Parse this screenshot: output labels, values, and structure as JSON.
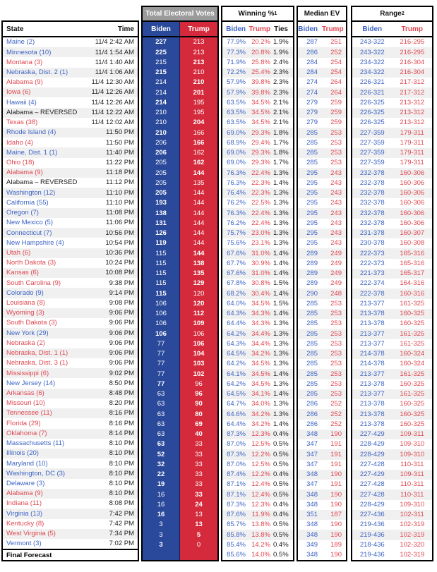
{
  "labels": {
    "total_electoral_votes": "Total Electoral Votes",
    "winning_pct": "Winning %",
    "winning_pct_sup": "1",
    "median_ev": "Median EV",
    "range": "Range",
    "range_sup": "2",
    "state": "State",
    "time": "Time",
    "biden": "Biden",
    "trump": "Trump",
    "ties": "Ties"
  },
  "colors": {
    "biden_column": "#2a499b",
    "trump_column": "#d42a3c",
    "biden_text": "#3d64c4",
    "trump_text": "#e04750",
    "header_gray": "#9b9b9b",
    "stripe": "#f0f0f0",
    "border": "#000000"
  },
  "chart_data": {
    "type": "table",
    "columns": [
      "State",
      "Time",
      "Total Electoral Votes Biden",
      "Total Electoral Votes Trump",
      "Winning % Biden",
      "Winning % Trump",
      "Winning % Ties",
      "Median EV Biden",
      "Median EV Trump",
      "Range Biden",
      "Range Trump"
    ],
    "rows": [
      {
        "state": "Maine (2)",
        "party": "biden",
        "time": "11/4 2:42 AM",
        "ev_biden": "227",
        "ev_trump": "213",
        "win_biden": "77.9%",
        "win_trump": "20.2%",
        "ties": "1.9%",
        "med_biden": "287",
        "med_trump": "251",
        "rng_biden": "243-322",
        "rng_trump": "216-295"
      },
      {
        "state": "Minnesota (10)",
        "party": "biden",
        "time": "11/4 1:54 AM",
        "ev_biden": "225",
        "ev_trump": "213",
        "win_biden": "77.3%",
        "win_trump": "20.8%",
        "ties": "1.9%",
        "med_biden": "286",
        "med_trump": "252",
        "rng_biden": "243-322",
        "rng_trump": "216-295"
      },
      {
        "state": "Montana (3)",
        "party": "trump",
        "time": "11/4 1:40 AM",
        "ev_biden": "215",
        "ev_trump": "213",
        "win_biden": "71.9%",
        "win_trump": "25.8%",
        "ties": "2.4%",
        "med_biden": "284",
        "med_trump": "254",
        "rng_biden": "234-322",
        "rng_trump": "216-304"
      },
      {
        "state": "Nebraska, Dist. 2 (1)",
        "party": "biden",
        "time": "11/4 1:06 AM",
        "ev_biden": "215",
        "ev_trump": "210",
        "win_biden": "72.2%",
        "win_trump": "25.4%",
        "ties": "2.3%",
        "med_biden": "284",
        "med_trump": "254",
        "rng_biden": "234-322",
        "rng_trump": "216-304"
      },
      {
        "state": "Alabama (9)",
        "party": "trump",
        "time": "11/4 12:30 AM",
        "ev_biden": "214",
        "ev_trump": "210",
        "win_biden": "57.9%",
        "win_trump": "39.8%",
        "ties": "2.3%",
        "med_biden": "274",
        "med_trump": "264",
        "rng_biden": "226-321",
        "rng_trump": "217-312"
      },
      {
        "state": "Iowa (6)",
        "party": "trump",
        "time": "11/4 12:26 AM",
        "ev_biden": "214",
        "ev_trump": "201",
        "win_biden": "57.9%",
        "win_trump": "39.8%",
        "ties": "2.3%",
        "med_biden": "274",
        "med_trump": "264",
        "rng_biden": "226-321",
        "rng_trump": "217-312"
      },
      {
        "state": "Hawaii (4)",
        "party": "biden",
        "time": "11/4 12:26 AM",
        "ev_biden": "214",
        "ev_trump": "195",
        "win_biden": "63.5%",
        "win_trump": "34.5%",
        "ties": "2.1%",
        "med_biden": "279",
        "med_trump": "259",
        "rng_biden": "226-325",
        "rng_trump": "213-312"
      },
      {
        "state": "Alabama – REVERSED",
        "party": "none",
        "time": "11/4 12:22 AM",
        "ev_biden": "210",
        "ev_trump": "195",
        "win_biden": "63.5%",
        "win_trump": "34.5%",
        "ties": "2.1%",
        "med_biden": "279",
        "med_trump": "259",
        "rng_biden": "226-325",
        "rng_trump": "213-312"
      },
      {
        "state": "Texas (38)",
        "party": "trump",
        "time": "11/4 12:02 AM",
        "ev_biden": "210",
        "ev_trump": "204",
        "win_biden": "63.5%",
        "win_trump": "34.5%",
        "ties": "2.1%",
        "med_biden": "279",
        "med_trump": "259",
        "rng_biden": "226-325",
        "rng_trump": "213-312"
      },
      {
        "state": "Rhode Island (4)",
        "party": "biden",
        "time": "11:50 PM",
        "ev_biden": "210",
        "ev_trump": "166",
        "win_biden": "69.0%",
        "win_trump": "29.3%",
        "ties": "1.8%",
        "med_biden": "285",
        "med_trump": "253",
        "rng_biden": "227-359",
        "rng_trump": "179-311"
      },
      {
        "state": "Idaho (4)",
        "party": "trump",
        "time": "11:50 PM",
        "ev_biden": "206",
        "ev_trump": "166",
        "win_biden": "68.9%",
        "win_trump": "29.4%",
        "ties": "1.7%",
        "med_biden": "285",
        "med_trump": "253",
        "rng_biden": "227-359",
        "rng_trump": "179-311"
      },
      {
        "state": "Maine, Dist. 1 (1)",
        "party": "biden",
        "time": "11:40 PM",
        "ev_biden": "206",
        "ev_trump": "162",
        "win_biden": "69.0%",
        "win_trump": "29.3%",
        "ties": "1.8%",
        "med_biden": "285",
        "med_trump": "253",
        "rng_biden": "227-359",
        "rng_trump": "179-311"
      },
      {
        "state": "Ohio (18)",
        "party": "trump",
        "time": "11:22 PM",
        "ev_biden": "205",
        "ev_trump": "162",
        "win_biden": "69.0%",
        "win_trump": "29.3%",
        "ties": "1.7%",
        "med_biden": "285",
        "med_trump": "253",
        "rng_biden": "227-359",
        "rng_trump": "179-311"
      },
      {
        "state": "Alabama (9)",
        "party": "trump",
        "time": "11:18 PM",
        "ev_biden": "205",
        "ev_trump": "144",
        "win_biden": "76.3%",
        "win_trump": "22.4%",
        "ties": "1.3%",
        "med_biden": "295",
        "med_trump": "243",
        "rng_biden": "232-378",
        "rng_trump": "160-306"
      },
      {
        "state": "Alabama – REVERSED",
        "party": "none",
        "time": "11:12 PM",
        "ev_biden": "205",
        "ev_trump": "135",
        "win_biden": "76.3%",
        "win_trump": "22.3%",
        "ties": "1.4%",
        "med_biden": "295",
        "med_trump": "243",
        "rng_biden": "232-378",
        "rng_trump": "160-306"
      },
      {
        "state": "Washington (12)",
        "party": "biden",
        "time": "11:10 PM",
        "ev_biden": "205",
        "ev_trump": "144",
        "win_biden": "76.4%",
        "win_trump": "22.3%",
        "ties": "1.3%",
        "med_biden": "295",
        "med_trump": "243",
        "rng_biden": "232-378",
        "rng_trump": "160-306"
      },
      {
        "state": "California (55)",
        "party": "biden",
        "time": "11:10 PM",
        "ev_biden": "193",
        "ev_trump": "144",
        "win_biden": "76.2%",
        "win_trump": "22.5%",
        "ties": "1.3%",
        "med_biden": "295",
        "med_trump": "243",
        "rng_biden": "232-378",
        "rng_trump": "160-306"
      },
      {
        "state": "Oregon (7)",
        "party": "biden",
        "time": "11:08 PM",
        "ev_biden": "138",
        "ev_trump": "144",
        "win_biden": "76.3%",
        "win_trump": "22.4%",
        "ties": "1.3%",
        "med_biden": "295",
        "med_trump": "243",
        "rng_biden": "232-378",
        "rng_trump": "160-306"
      },
      {
        "state": "New Mexico (5)",
        "party": "biden",
        "time": "11:06 PM",
        "ev_biden": "131",
        "ev_trump": "144",
        "win_biden": "76.2%",
        "win_trump": "22.4%",
        "ties": "1.3%",
        "med_biden": "295",
        "med_trump": "243",
        "rng_biden": "232-378",
        "rng_trump": "160-306"
      },
      {
        "state": "Connecticut (7)",
        "party": "biden",
        "time": "10:56 PM",
        "ev_biden": "126",
        "ev_trump": "144",
        "win_biden": "75.7%",
        "win_trump": "23.0%",
        "ties": "1.3%",
        "med_biden": "295",
        "med_trump": "243",
        "rng_biden": "231-378",
        "rng_trump": "160-307"
      },
      {
        "state": "New Hampshire (4)",
        "party": "biden",
        "time": "10:54 PM",
        "ev_biden": "119",
        "ev_trump": "144",
        "win_biden": "75.6%",
        "win_trump": "23.1%",
        "ties": "1.3%",
        "med_biden": "295",
        "med_trump": "243",
        "rng_biden": "230-378",
        "rng_trump": "160-308"
      },
      {
        "state": "Utah (6)",
        "party": "trump",
        "time": "10:36 PM",
        "ev_biden": "115",
        "ev_trump": "144",
        "win_biden": "67.6%",
        "win_trump": "31.0%",
        "ties": "1.4%",
        "med_biden": "289",
        "med_trump": "249",
        "rng_biden": "222-373",
        "rng_trump": "165-316"
      },
      {
        "state": "North Dakota (3)",
        "party": "trump",
        "time": "10:24 PM",
        "ev_biden": "115",
        "ev_trump": "138",
        "win_biden": "67.7%",
        "win_trump": "30.9%",
        "ties": "1.4%",
        "med_biden": "289",
        "med_trump": "249",
        "rng_biden": "222-373",
        "rng_trump": "165-316"
      },
      {
        "state": "Kansas (6)",
        "party": "trump",
        "time": "10:08 PM",
        "ev_biden": "115",
        "ev_trump": "135",
        "win_biden": "67.6%",
        "win_trump": "31.0%",
        "ties": "1.4%",
        "med_biden": "289",
        "med_trump": "249",
        "rng_biden": "221-373",
        "rng_trump": "165-317"
      },
      {
        "state": "South Carolina (9)",
        "party": "trump",
        "time": "9:38 PM",
        "ev_biden": "115",
        "ev_trump": "129",
        "win_biden": "67.8%",
        "win_trump": "30.8%",
        "ties": "1.5%",
        "med_biden": "289",
        "med_trump": "249",
        "rng_biden": "222-374",
        "rng_trump": "164-316"
      },
      {
        "state": "Colorado (9)",
        "party": "biden",
        "time": "9:14 PM",
        "ev_biden": "115",
        "ev_trump": "120",
        "win_biden": "68.2%",
        "win_trump": "30.4%",
        "ties": "1.4%",
        "med_biden": "290",
        "med_trump": "248",
        "rng_biden": "222-378",
        "rng_trump": "160-316"
      },
      {
        "state": "Louisiana (8)",
        "party": "trump",
        "time": "9:08 PM",
        "ev_biden": "106",
        "ev_trump": "120",
        "win_biden": "64.0%",
        "win_trump": "34.5%",
        "ties": "1.5%",
        "med_biden": "285",
        "med_trump": "253",
        "rng_biden": "213-377",
        "rng_trump": "161-325"
      },
      {
        "state": "Wyoming (3)",
        "party": "trump",
        "time": "9:06 PM",
        "ev_biden": "106",
        "ev_trump": "112",
        "win_biden": "64.3%",
        "win_trump": "34.3%",
        "ties": "1.4%",
        "med_biden": "285",
        "med_trump": "253",
        "rng_biden": "213-378",
        "rng_trump": "160-325"
      },
      {
        "state": "South Dakota (3)",
        "party": "trump",
        "time": "9:06 PM",
        "ev_biden": "106",
        "ev_trump": "109",
        "win_biden": "64.4%",
        "win_trump": "34.3%",
        "ties": "1.3%",
        "med_biden": "285",
        "med_trump": "253",
        "rng_biden": "213-378",
        "rng_trump": "160-325"
      },
      {
        "state": "New York (29)",
        "party": "biden",
        "time": "9:06 PM",
        "ev_biden": "106",
        "ev_trump": "106",
        "win_biden": "64.2%",
        "win_trump": "34.4%",
        "ties": "1.3%",
        "med_biden": "285",
        "med_trump": "253",
        "rng_biden": "213-377",
        "rng_trump": "161-325"
      },
      {
        "state": "Nebraska (2)",
        "party": "trump",
        "time": "9:06 PM",
        "ev_biden": "77",
        "ev_trump": "106",
        "win_biden": "64.3%",
        "win_trump": "34.4%",
        "ties": "1.3%",
        "med_biden": "285",
        "med_trump": "253",
        "rng_biden": "213-377",
        "rng_trump": "161-325"
      },
      {
        "state": "Nebraska, Dist. 1 (1)",
        "party": "trump",
        "time": "9:06 PM",
        "ev_biden": "77",
        "ev_trump": "104",
        "win_biden": "64.5%",
        "win_trump": "34.2%",
        "ties": "1.3%",
        "med_biden": "285",
        "med_trump": "253",
        "rng_biden": "214-378",
        "rng_trump": "160-324"
      },
      {
        "state": "Nebraska, Dist. 3 (1)",
        "party": "trump",
        "time": "9:06 PM",
        "ev_biden": "77",
        "ev_trump": "103",
        "win_biden": "64.2%",
        "win_trump": "34.5%",
        "ties": "1.3%",
        "med_biden": "285",
        "med_trump": "253",
        "rng_biden": "214-378",
        "rng_trump": "160-324"
      },
      {
        "state": "Mississippi (6)",
        "party": "trump",
        "time": "9:02 PM",
        "ev_biden": "77",
        "ev_trump": "102",
        "win_biden": "64.1%",
        "win_trump": "34.5%",
        "ties": "1.4%",
        "med_biden": "285",
        "med_trump": "253",
        "rng_biden": "213-377",
        "rng_trump": "161-325"
      },
      {
        "state": "New Jersey (14)",
        "party": "biden",
        "time": "8:50 PM",
        "ev_biden": "77",
        "ev_trump": "96",
        "win_biden": "64.2%",
        "win_trump": "34.5%",
        "ties": "1.3%",
        "med_biden": "285",
        "med_trump": "253",
        "rng_biden": "213-378",
        "rng_trump": "160-325"
      },
      {
        "state": "Arkansas (6)",
        "party": "trump",
        "time": "8:48 PM",
        "ev_biden": "63",
        "ev_trump": "96",
        "win_biden": "64.5%",
        "win_trump": "34.1%",
        "ties": "1.4%",
        "med_biden": "285",
        "med_trump": "253",
        "rng_biden": "213-377",
        "rng_trump": "161-325"
      },
      {
        "state": "Missouri (10)",
        "party": "trump",
        "time": "8:20 PM",
        "ev_biden": "63",
        "ev_trump": "90",
        "win_biden": "64.7%",
        "win_trump": "34.0%",
        "ties": "1.3%",
        "med_biden": "286",
        "med_trump": "252",
        "rng_biden": "213-378",
        "rng_trump": "160-325"
      },
      {
        "state": "Tennessee (11)",
        "party": "trump",
        "time": "8:16 PM",
        "ev_biden": "63",
        "ev_trump": "80",
        "win_biden": "64.6%",
        "win_trump": "34.2%",
        "ties": "1.3%",
        "med_biden": "286",
        "med_trump": "252",
        "rng_biden": "213-378",
        "rng_trump": "160-325"
      },
      {
        "state": "Florida (29)",
        "party": "trump",
        "time": "8:16 PM",
        "ev_biden": "63",
        "ev_trump": "69",
        "win_biden": "64.4%",
        "win_trump": "34.2%",
        "ties": "1.4%",
        "med_biden": "286",
        "med_trump": "252",
        "rng_biden": "213-378",
        "rng_trump": "160-325"
      },
      {
        "state": "Oklahoma (7)",
        "party": "trump",
        "time": "8:14 PM",
        "ev_biden": "63",
        "ev_trump": "40",
        "win_biden": "87.3%",
        "win_trump": "12.3%",
        "ties": "0.4%",
        "med_biden": "348",
        "med_trump": "190",
        "rng_biden": "227-429",
        "rng_trump": "109-311"
      },
      {
        "state": "Massachusetts (11)",
        "party": "biden",
        "time": "8:10 PM",
        "ev_biden": "63",
        "ev_trump": "33",
        "win_biden": "87.0%",
        "win_trump": "12.5%",
        "ties": "0.5%",
        "med_biden": "347",
        "med_trump": "191",
        "rng_biden": "228-429",
        "rng_trump": "109-310"
      },
      {
        "state": "Illinois (20)",
        "party": "biden",
        "time": "8:10 PM",
        "ev_biden": "52",
        "ev_trump": "33",
        "win_biden": "87.3%",
        "win_trump": "12.2%",
        "ties": "0.5%",
        "med_biden": "347",
        "med_trump": "191",
        "rng_biden": "228-429",
        "rng_trump": "109-310"
      },
      {
        "state": "Maryland (10)",
        "party": "biden",
        "time": "8:10 PM",
        "ev_biden": "32",
        "ev_trump": "33",
        "win_biden": "87.0%",
        "win_trump": "12.5%",
        "ties": "0.5%",
        "med_biden": "347",
        "med_trump": "191",
        "rng_biden": "227-428",
        "rng_trump": "110-311"
      },
      {
        "state": "Washington, DC (3)",
        "party": "biden",
        "time": "8:10 PM",
        "ev_biden": "22",
        "ev_trump": "33",
        "win_biden": "87.4%",
        "win_trump": "12.2%",
        "ties": "0.4%",
        "med_biden": "348",
        "med_trump": "190",
        "rng_biden": "227-429",
        "rng_trump": "109-311"
      },
      {
        "state": "Delaware (3)",
        "party": "biden",
        "time": "8:10 PM",
        "ev_biden": "19",
        "ev_trump": "33",
        "win_biden": "87.1%",
        "win_trump": "12.4%",
        "ties": "0.5%",
        "med_biden": "347",
        "med_trump": "191",
        "rng_biden": "227-428",
        "rng_trump": "110-311"
      },
      {
        "state": "Alabama (9)",
        "party": "trump",
        "time": "8:10 PM",
        "ev_biden": "16",
        "ev_trump": "33",
        "win_biden": "87.1%",
        "win_trump": "12.4%",
        "ties": "0.5%",
        "med_biden": "348",
        "med_trump": "190",
        "rng_biden": "227-428",
        "rng_trump": "110-311"
      },
      {
        "state": "Indiana (11)",
        "party": "trump",
        "time": "8:08 PM",
        "ev_biden": "16",
        "ev_trump": "24",
        "win_biden": "87.3%",
        "win_trump": "12.3%",
        "ties": "0.4%",
        "med_biden": "348",
        "med_trump": "190",
        "rng_biden": "228-429",
        "rng_trump": "109-310"
      },
      {
        "state": "Virginia (13)",
        "party": "biden",
        "time": "7:42 PM",
        "ev_biden": "16",
        "ev_trump": "13",
        "win_biden": "87.6%",
        "win_trump": "11.9%",
        "ties": "0.4%",
        "med_biden": "351",
        "med_trump": "187",
        "rng_biden": "227-436",
        "rng_trump": "102-311"
      },
      {
        "state": "Kentucky (8)",
        "party": "trump",
        "time": "7:42 PM",
        "ev_biden": "3",
        "ev_trump": "13",
        "win_biden": "85.7%",
        "win_trump": "13.8%",
        "ties": "0.5%",
        "med_biden": "348",
        "med_trump": "190",
        "rng_biden": "219-436",
        "rng_trump": "102-319"
      },
      {
        "state": "West Virginia (5)",
        "party": "trump",
        "time": "7:34 PM",
        "ev_biden": "3",
        "ev_trump": "5",
        "win_biden": "85.8%",
        "win_trump": "13.8%",
        "ties": "0.5%",
        "med_biden": "348",
        "med_trump": "190",
        "rng_biden": "219-436",
        "rng_trump": "102-319"
      },
      {
        "state": "Vermont (3)",
        "party": "biden",
        "time": "7:02 PM",
        "ev_biden": "3",
        "ev_trump": "0",
        "win_biden": "85.4%",
        "win_trump": "14.2%",
        "ties": "0.4%",
        "med_biden": "349",
        "med_trump": "189",
        "rng_biden": "218-436",
        "rng_trump": "102-320"
      },
      {
        "state": "Final Forecast",
        "party": "final",
        "time": "",
        "ev_biden": "",
        "ev_trump": "",
        "win_biden": "85.6%",
        "win_trump": "14.0%",
        "ties": "0.5%",
        "med_biden": "348",
        "med_trump": "190",
        "rng_biden": "219-436",
        "rng_trump": "102-319"
      }
    ]
  }
}
